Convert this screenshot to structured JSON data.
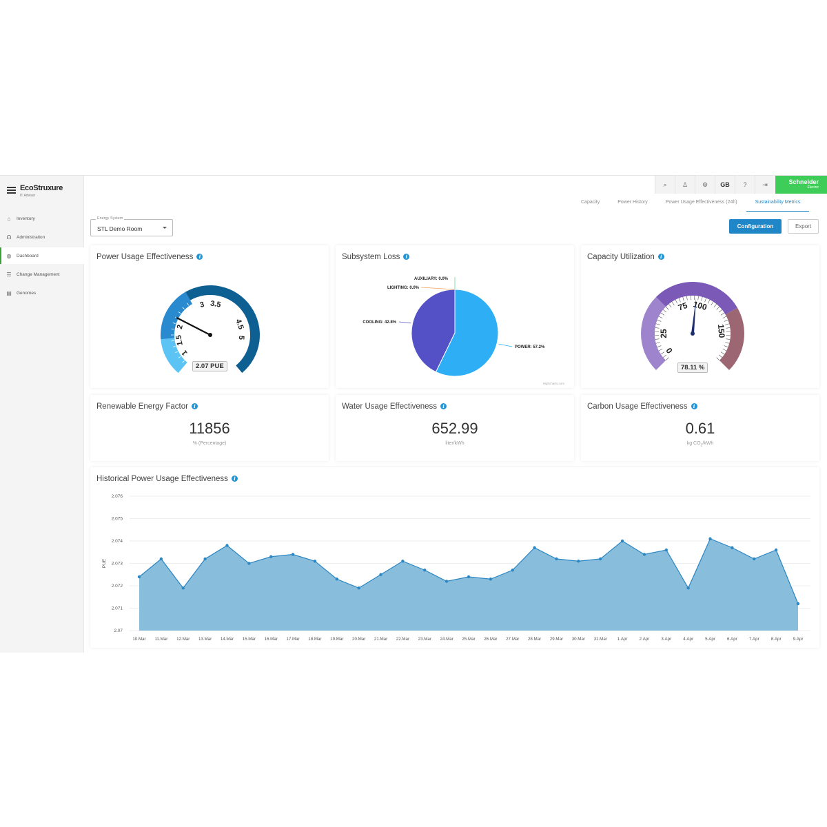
{
  "app": {
    "logo": {
      "brand": "EcoStruxure",
      "sub": "IT Advisor"
    },
    "brand_box": {
      "name": "Schneider",
      "sub": "Electric"
    }
  },
  "sidebar": {
    "items": [
      {
        "label": "Inventory",
        "icon": "home-icon"
      },
      {
        "label": "Administration",
        "icon": "users-icon"
      },
      {
        "label": "Dashboard",
        "icon": "dashboard-icon",
        "active": true
      },
      {
        "label": "Change Management",
        "icon": "list-icon"
      },
      {
        "label": "Genomes",
        "icon": "genome-icon"
      }
    ]
  },
  "topbar": {
    "items": [
      {
        "icon": "search-icon",
        "glyph": "⌕"
      },
      {
        "icon": "user-icon",
        "glyph": "♙"
      },
      {
        "icon": "settings-icon",
        "glyph": "⚙"
      },
      {
        "label": "GB"
      },
      {
        "icon": "help-icon",
        "glyph": "?"
      },
      {
        "icon": "logout-icon",
        "glyph": "⇥"
      }
    ]
  },
  "tabs": [
    {
      "label": "Capacity"
    },
    {
      "label": "Power History"
    },
    {
      "label": "Power Usage Effectiveness (24h)"
    },
    {
      "label": "Sustainability Metrics",
      "active": true
    }
  ],
  "energy_system": {
    "label": "Energy System",
    "value": "STL Demo Room"
  },
  "buttons": {
    "configuration": "Configuration",
    "export": "Export"
  },
  "info_glyph": "i",
  "pue_card": {
    "title": "Power Usage Effectiveness",
    "value": 2.07,
    "readout": "2.07 PUE",
    "ticks": [
      "1",
      "1.5",
      "2",
      "3",
      "3.5",
      "4.5",
      "5"
    ],
    "colors": [
      "#5bc4f5",
      "#2a8ad0",
      "#0e5f92"
    ]
  },
  "subsystem_card": {
    "title": "Subsystem Loss",
    "credit": "Highcharts.com",
    "slices": [
      {
        "name": "POWER",
        "label": "POWER: 57.2%",
        "value": 57.2,
        "color": "#2eaef5"
      },
      {
        "name": "COOLING",
        "label": "COOLING: 42.8%",
        "value": 42.8,
        "color": "#5451c7"
      },
      {
        "name": "LIGHTING",
        "label": "LIGHTING: 0.0%",
        "value": 0.0,
        "color": "#f2a05a"
      },
      {
        "name": "AUXILIARY",
        "label": "AUXILIARY: 0.0%",
        "value": 0.0,
        "color": "#6fd59a"
      }
    ]
  },
  "capacity_card": {
    "title": "Capacity Utilization",
    "value": 78.11,
    "readout": "78.11 %",
    "ticks": [
      "0",
      "25",
      "75",
      "100",
      "150"
    ],
    "colors": [
      "#9e84cc",
      "#7a59b7",
      "#9c6672"
    ]
  },
  "ref_card": {
    "title": "Renewable Energy Factor",
    "value": "11856",
    "unit": "% (Percentage)"
  },
  "wue_card": {
    "title": "Water Usage Effectiveness",
    "value": "652.99",
    "unit": "liter/kWh"
  },
  "cue_card": {
    "title": "Carbon Usage Effectiveness",
    "value": "0.61",
    "unit_prefix": "kg CO",
    "unit_sub": "2",
    "unit_suffix": "/kWh"
  },
  "history_card": {
    "title": "Historical Power Usage Effectiveness"
  },
  "chart_data": {
    "type": "area",
    "title": "Historical Power Usage Effectiveness",
    "xlabel": "",
    "ylabel": "PUE",
    "ylim": [
      2.07,
      2.076
    ],
    "yticks": [
      "2.076",
      "2.075",
      "2.074",
      "2.073",
      "2.072",
      "2.071",
      "2.07"
    ],
    "grid": true,
    "color": "#88bddc",
    "line_color": "#2b86c2",
    "x": [
      "10.Mar",
      "11.Mar",
      "12.Mar",
      "13.Mar",
      "14.Mar",
      "15.Mar",
      "16.Mar",
      "17.Mar",
      "18.Mar",
      "19.Mar",
      "20.Mar",
      "21.Mar",
      "22.Mar",
      "23.Mar",
      "24.Mar",
      "25.Mar",
      "26.Mar",
      "27.Mar",
      "28.Mar",
      "29.Mar",
      "30.Mar",
      "31.Mar",
      "1.Apr",
      "2.Apr",
      "3.Apr",
      "4.Apr",
      "5.Apr",
      "6.Apr",
      "7.Apr",
      "8.Apr",
      "9.Apr"
    ],
    "values": [
      2.0724,
      2.0732,
      2.0719,
      2.0732,
      2.0738,
      2.073,
      2.0733,
      2.0734,
      2.0731,
      2.0723,
      2.0719,
      2.0725,
      2.0731,
      2.0727,
      2.0722,
      2.0724,
      2.0723,
      2.0727,
      2.0737,
      2.0732,
      2.0731,
      2.0732,
      2.074,
      2.0734,
      2.0736,
      2.0719,
      2.0741,
      2.0737,
      2.0732,
      2.0736,
      2.0712
    ]
  }
}
